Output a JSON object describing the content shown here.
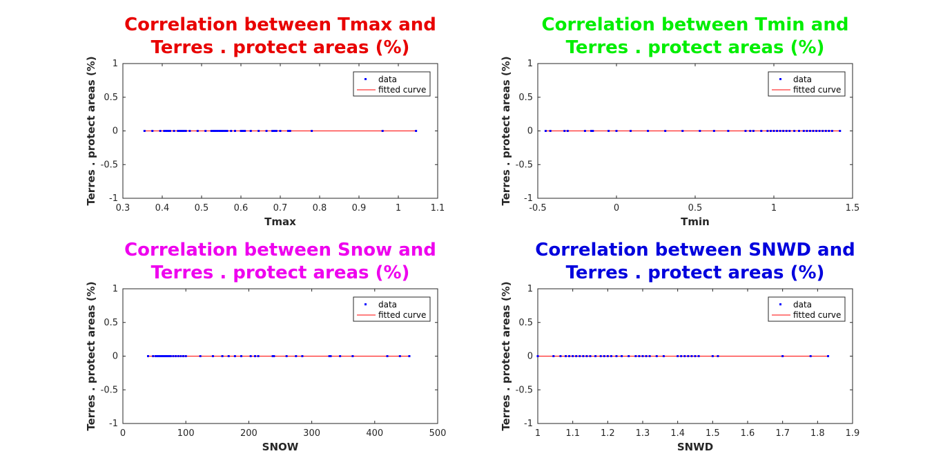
{
  "chart_data": [
    {
      "type": "scatter",
      "title_lines": [
        "Correlation between Tmax and",
        "Terres . protect areas (%)"
      ],
      "title_color": "#e80000",
      "xlabel": "Tmax",
      "ylabel": "Terres . protect areas (%)",
      "xlim": [
        0.3,
        1.1
      ],
      "ylim": [
        -1,
        1
      ],
      "xticks": [
        "0.3",
        "0.4",
        "0.5",
        "0.6",
        "0.7",
        "0.8",
        "0.9",
        "1",
        "1.1"
      ],
      "yticks": [
        "-1",
        "-0.5",
        "0",
        "0.5",
        "1"
      ],
      "legend": [
        "data",
        "fitted curve"
      ],
      "legend_position": "top-right",
      "colors": {
        "data": "#0000ff",
        "fit": "#ff0000"
      },
      "series": [
        {
          "name": "data",
          "x": [
            0.355,
            0.375,
            0.395,
            0.405,
            0.41,
            0.415,
            0.42,
            0.43,
            0.44,
            0.445,
            0.45,
            0.455,
            0.46,
            0.47,
            0.49,
            0.51,
            0.525,
            0.53,
            0.535,
            0.54,
            0.545,
            0.55,
            0.555,
            0.56,
            0.565,
            0.575,
            0.585,
            0.6,
            0.605,
            0.61,
            0.625,
            0.645,
            0.665,
            0.68,
            0.685,
            0.69,
            0.7,
            0.72,
            0.725,
            0.78,
            0.96,
            1.045
          ],
          "y": [
            0,
            0,
            0,
            0,
            0,
            0,
            0,
            0,
            0,
            0,
            0,
            0,
            0,
            0,
            0,
            0,
            0,
            0,
            0,
            0,
            0,
            0,
            0,
            0,
            0,
            0,
            0,
            0,
            0,
            0,
            0,
            0,
            0,
            0,
            0,
            0,
            0,
            0,
            0,
            0,
            0,
            0
          ]
        },
        {
          "name": "fitted curve",
          "x": [
            0.355,
            1.045
          ],
          "y": [
            0,
            0
          ]
        }
      ]
    },
    {
      "type": "scatter",
      "title_lines": [
        "Correlation between Tmin and",
        "Terres . protect areas (%)"
      ],
      "title_color": "#00ee00",
      "xlabel": "Tmin",
      "ylabel": "Terres . protect areas (%)",
      "xlim": [
        -0.5,
        1.5
      ],
      "ylim": [
        -1,
        1
      ],
      "xticks": [
        "-0.5",
        "0",
        "0.5",
        "1",
        "1.5"
      ],
      "yticks": [
        "-1",
        "-0.5",
        "0",
        "0.5",
        "1"
      ],
      "legend": [
        "data",
        "fitted curve"
      ],
      "legend_position": "top-right",
      "colors": {
        "data": "#0000ff",
        "fit": "#ff0000"
      },
      "series": [
        {
          "name": "data",
          "x": [
            -0.45,
            -0.42,
            -0.33,
            -0.31,
            -0.2,
            -0.16,
            -0.15,
            -0.05,
            0.0,
            0.09,
            0.2,
            0.31,
            0.42,
            0.53,
            0.62,
            0.71,
            0.82,
            0.85,
            0.87,
            0.92,
            0.96,
            0.98,
            1.0,
            1.02,
            1.04,
            1.06,
            1.08,
            1.1,
            1.13,
            1.16,
            1.19,
            1.21,
            1.23,
            1.25,
            1.27,
            1.29,
            1.31,
            1.33,
            1.35,
            1.37,
            1.42
          ],
          "y": [
            0,
            0,
            0,
            0,
            0,
            0,
            0,
            0,
            0,
            0,
            0,
            0,
            0,
            0,
            0,
            0,
            0,
            0,
            0,
            0,
            0,
            0,
            0,
            0,
            0,
            0,
            0,
            0,
            0,
            0,
            0,
            0,
            0,
            0,
            0,
            0,
            0,
            0,
            0,
            0,
            0
          ]
        },
        {
          "name": "fitted curve",
          "x": [
            -0.45,
            1.42
          ],
          "y": [
            0,
            0
          ]
        }
      ]
    },
    {
      "type": "scatter",
      "title_lines": [
        "Correlation between Snow and",
        "Terres . protect areas (%)"
      ],
      "title_color": "#ee00ee",
      "xlabel": "SNOW",
      "ylabel": "Terres . protect areas (%)",
      "xlim": [
        0,
        500
      ],
      "ylim": [
        -1,
        1
      ],
      "xticks": [
        "0",
        "100",
        "200",
        "300",
        "400",
        "500"
      ],
      "yticks": [
        "-1",
        "-0.5",
        "0",
        "0.5",
        "1"
      ],
      "legend": [
        "data",
        "fitted curve"
      ],
      "legend_position": "top-right",
      "colors": {
        "data": "#0000ff",
        "fit": "#ff0000"
      },
      "series": [
        {
          "name": "data",
          "x": [
            40,
            48,
            52,
            55,
            58,
            61,
            64,
            67,
            70,
            73,
            76,
            80,
            84,
            88,
            92,
            96,
            100,
            123,
            143,
            158,
            168,
            178,
            188,
            203,
            210,
            215,
            238,
            240,
            260,
            275,
            285,
            328,
            330,
            345,
            365,
            420,
            440,
            455
          ],
          "y": [
            0,
            0,
            0,
            0,
            0,
            0,
            0,
            0,
            0,
            0,
            0,
            0,
            0,
            0,
            0,
            0,
            0,
            0,
            0,
            0,
            0,
            0,
            0,
            0,
            0,
            0,
            0,
            0,
            0,
            0,
            0,
            0,
            0,
            0,
            0,
            0,
            0,
            0
          ]
        },
        {
          "name": "fitted curve",
          "x": [
            40,
            455
          ],
          "y": [
            0,
            0
          ]
        }
      ]
    },
    {
      "type": "scatter",
      "title_lines": [
        "Correlation between SNWD and",
        "Terres . protect areas (%)"
      ],
      "title_color": "#0000dd",
      "xlabel": "SNWD",
      "ylabel": "Terres . protect areas (%)",
      "xlim": [
        1,
        1.9
      ],
      "ylim": [
        -1,
        1
      ],
      "xticks": [
        "1",
        "1.1",
        "1.2",
        "1.3",
        "1.4",
        "1.5",
        "1.6",
        "1.7",
        "1.8",
        "1.9"
      ],
      "yticks": [
        "-1",
        "-0.5",
        "0",
        "0.5",
        "1"
      ],
      "legend": [
        "data",
        "fitted curve"
      ],
      "legend_position": "top-right",
      "colors": {
        "data": "#0000ff",
        "fit": "#ff0000"
      },
      "series": [
        {
          "name": "data",
          "x": [
            1.0,
            1.045,
            1.065,
            1.08,
            1.09,
            1.1,
            1.11,
            1.12,
            1.13,
            1.14,
            1.15,
            1.165,
            1.18,
            1.19,
            1.2,
            1.21,
            1.225,
            1.24,
            1.26,
            1.28,
            1.29,
            1.3,
            1.31,
            1.32,
            1.34,
            1.36,
            1.4,
            1.41,
            1.42,
            1.43,
            1.44,
            1.45,
            1.46,
            1.5,
            1.515,
            1.7,
            1.78,
            1.83
          ],
          "y": [
            0,
            0,
            0,
            0,
            0,
            0,
            0,
            0,
            0,
            0,
            0,
            0,
            0,
            0,
            0,
            0,
            0,
            0,
            0,
            0,
            0,
            0,
            0,
            0,
            0,
            0,
            0,
            0,
            0,
            0,
            0,
            0,
            0,
            0,
            0,
            0,
            0,
            0
          ]
        },
        {
          "name": "fitted curve",
          "x": [
            1.0,
            1.83
          ],
          "y": [
            0,
            0
          ]
        }
      ]
    }
  ]
}
